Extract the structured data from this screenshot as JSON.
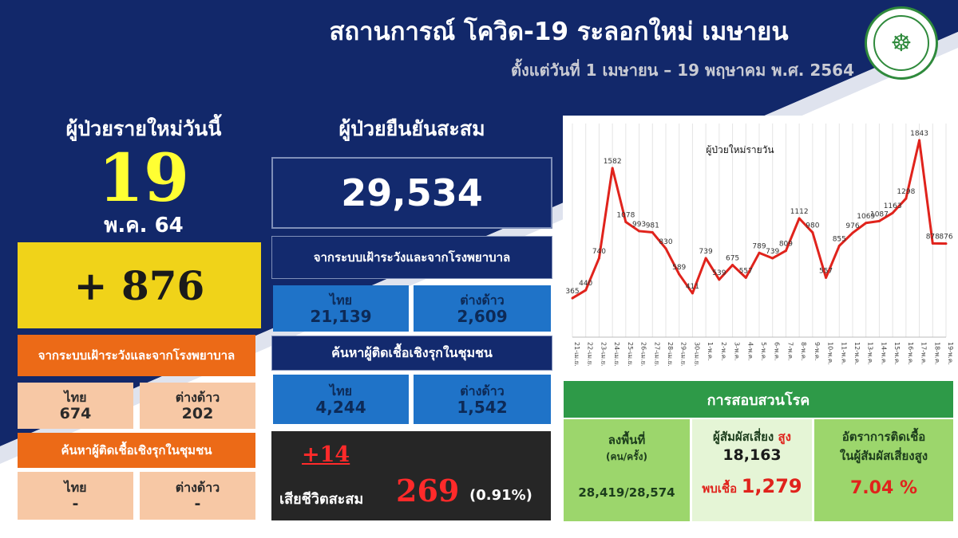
{
  "header": {
    "title": "สถานการณ์ โควิด-19 ระลอกใหม่ เมษายน",
    "subtitle": "ตั้งแต่วันที่ 1 เมษายน – 19 พฤษาคม พ.ศ. 2564"
  },
  "colors": {
    "navy": "#132a6e",
    "yellow": "#f0d319",
    "orange": "#ec6a17",
    "peach": "#f7c8a5",
    "blue": "#1f73c8",
    "green": "#2e9a48",
    "light_green": "#9cd66c",
    "red": "#e0231c"
  },
  "today": {
    "label": "ผู้ป่วยรายใหม่วันนี้",
    "day": "19",
    "month": "พ.ค. 64",
    "new_cases": "+ 876",
    "source_label": "จากระบบเฝ้าระวังและจากโรงพยาบาล",
    "thai_label": "ไทย",
    "thai_value": "674",
    "foreign_label": "ต่างด้าว",
    "foreign_value": "202",
    "community_label": "ค้นหาผู้ติดเชื้อเชิงรุกในชุมชน",
    "community_thai_label": "ไทย",
    "community_thai_value": "-",
    "community_foreign_label": "ต่างด้าว",
    "community_foreign_value": "-"
  },
  "cumulative": {
    "label": "ผู้ป่วยยืนยันสะสม",
    "total": "29,534",
    "source_label": "จากระบบเฝ้าระวังและจากโรงพยาบาล",
    "thai_label": "ไทย",
    "thai_value": "21,139",
    "foreign_label": "ต่างด้าว",
    "foreign_value": "2,609",
    "community_label": "ค้นหาผู้ติดเชื้อเชิงรุกในชุมชน",
    "community_thai_label": "ไทย",
    "community_thai_value": "4,244",
    "community_foreign_label": "ต่างด้าว",
    "community_foreign_value": "1,542"
  },
  "deaths": {
    "new": "+14",
    "label": "เสียชีวิตสะสม",
    "total": "269",
    "percent": "(0.91%)"
  },
  "investigation": {
    "header": "การสอบสวนโรค",
    "field_label": "ลงพื้นที่",
    "field_unit": "(คน/ครั้ง)",
    "field_value": "28,419/28,574",
    "contact_label": "ผู้สัมผัสเสี่ยง",
    "contact_high": "สูง",
    "contact_value": "18,163",
    "found_label": "พบเชื้อ",
    "found_value": "1,279",
    "rate_label_1": "อัตราการติดเชื้อ",
    "rate_label_2": "ในผู้สัมผัสเสี่ยงสูง",
    "rate_value": "7.04 %"
  },
  "chart_data": {
    "type": "line",
    "title": "ผู้ป่วยใหม่รายวัน",
    "x": [
      "21-เม.ย.",
      "22-เม.ย.",
      "23-เม.ย.",
      "24-เม.ย.",
      "25-เม.ย.",
      "26-เม.ย.",
      "27-เม.ย.",
      "28-เม.ย.",
      "29-เม.ย.",
      "30-เม.ย.",
      "1-พ.ค.",
      "2-พ.ค.",
      "3-พ.ค.",
      "4-พ.ค.",
      "5-พ.ค.",
      "6-พ.ค.",
      "7-พ.ค.",
      "8-พ.ค.",
      "9-พ.ค.",
      "10-พ.ค.",
      "11-พ.ค.",
      "12-พ.ค.",
      "13-พ.ค.",
      "14-พ.ค.",
      "15-พ.ค.",
      "16-พ.ค.",
      "17-พ.ค.",
      "18-พ.ค.",
      "19-พ.ค."
    ],
    "values": [
      365,
      440,
      740,
      1582,
      1078,
      993,
      981,
      830,
      589,
      411,
      739,
      539,
      675,
      557,
      789,
      739,
      809,
      1112,
      980,
      557,
      855,
      976,
      1069,
      1087,
      1163,
      1298,
      1843,
      878,
      876
    ],
    "ylim": [
      0,
      2000
    ],
    "grid": true,
    "legend": "none",
    "line_color": "#e0231c"
  }
}
